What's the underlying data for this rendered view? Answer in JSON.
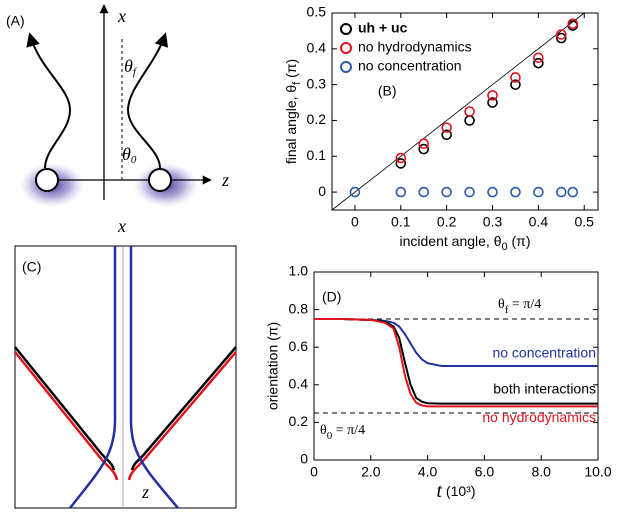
{
  "panel_a": {
    "label": "(A)",
    "x_axis": "x",
    "z_axis": "z",
    "theta_f": {
      "symbol": "θ",
      "subscript": "f"
    },
    "theta_0": {
      "symbol": "θ",
      "subscript": "0"
    }
  },
  "panel_c": {
    "label": "(C)",
    "x_axis": "x",
    "z_axis": "z"
  },
  "chart_data": [
    {
      "type": "scatter",
      "annotation": "(B)",
      "xlabel": {
        "text": "incident angle, θ",
        "subscript": "0",
        "suffix": " (π)"
      },
      "ylabel": {
        "text": "final angle, θ",
        "subscript": "f",
        "suffix": " (π)"
      },
      "xlim": [
        -0.05,
        0.53
      ],
      "ylim": [
        -0.05,
        0.5
      ],
      "xticks": [
        0,
        0.1,
        0.2,
        0.3,
        0.4,
        0.5
      ],
      "yticks": [
        0,
        0.1,
        0.2,
        0.3,
        0.4,
        0.5
      ],
      "legend": "upper left",
      "reference_line": {
        "x": [
          -0.05,
          0.5
        ],
        "y": [
          -0.05,
          0.5
        ]
      },
      "series": [
        {
          "name": "uh + uc",
          "color": "#000000",
          "x": [
            0.1,
            0.15,
            0.2,
            0.25,
            0.3,
            0.35,
            0.4,
            0.45,
            0.475
          ],
          "values": [
            0.08,
            0.12,
            0.16,
            0.2,
            0.25,
            0.3,
            0.36,
            0.43,
            0.465
          ]
        },
        {
          "name": "no hydrodynamics",
          "color": "#e0141e",
          "x": [
            0.1,
            0.15,
            0.2,
            0.25,
            0.3,
            0.35,
            0.4,
            0.45,
            0.475
          ],
          "values": [
            0.095,
            0.135,
            0.18,
            0.225,
            0.27,
            0.32,
            0.375,
            0.44,
            0.47
          ]
        },
        {
          "name": "no concentration",
          "color": "#2a5caa",
          "x": [
            0,
            0.1,
            0.15,
            0.2,
            0.25,
            0.3,
            0.35,
            0.4,
            0.45,
            0.475
          ],
          "values": [
            0,
            0,
            0,
            0,
            0,
            0,
            0,
            0,
            0,
            0
          ]
        }
      ]
    },
    {
      "type": "line",
      "annotation": "(D)",
      "xlabel": {
        "text": "t",
        "suffix": " (10³)"
      },
      "ylabel": "orientation (π)",
      "xlim": [
        0,
        10
      ],
      "ylim": [
        0,
        1
      ],
      "xticks": [
        0,
        {
          "value": 2,
          "label": "2.0"
        },
        {
          "value": 4,
          "label": "4.0"
        },
        {
          "value": 6,
          "label": "6.0"
        },
        {
          "value": 8,
          "label": "8.0"
        },
        {
          "value": 10,
          "label": "10.0"
        }
      ],
      "yticks": [
        0,
        0.2,
        0.4,
        0.6,
        0.8,
        {
          "value": 1,
          "label": "1.0"
        }
      ],
      "hlines": [
        {
          "y": 0.75,
          "symbol": "θ",
          "subscript": "f",
          "text": " = π/4"
        },
        {
          "y": 0.25,
          "symbol": "θ",
          "subscript": "0",
          "text": " = π/4"
        }
      ],
      "x": [
        0,
        1,
        2,
        2.5,
        2.8,
        3.0,
        3.2,
        3.4,
        3.6,
        3.8,
        4.0,
        4.5,
        5,
        6,
        7,
        8,
        9,
        10
      ],
      "series": [
        {
          "name": "no concentration",
          "color": "#2030a0",
          "values": [
            0.75,
            0.75,
            0.745,
            0.74,
            0.73,
            0.71,
            0.67,
            0.62,
            0.57,
            0.535,
            0.515,
            0.5,
            0.5,
            0.5,
            0.5,
            0.5,
            0.5,
            0.5
          ]
        },
        {
          "name": "both interactions",
          "color": "#000000",
          "values": [
            0.75,
            0.75,
            0.745,
            0.735,
            0.71,
            0.65,
            0.52,
            0.4,
            0.33,
            0.31,
            0.302,
            0.3,
            0.3,
            0.3,
            0.3,
            0.3,
            0.3,
            0.3
          ]
        },
        {
          "name": "no hydrodynamics",
          "color": "#e0141e",
          "values": [
            0.75,
            0.75,
            0.745,
            0.73,
            0.7,
            0.6,
            0.45,
            0.35,
            0.305,
            0.29,
            0.285,
            0.285,
            0.285,
            0.285,
            0.285,
            0.285,
            0.285,
            0.285
          ]
        }
      ]
    }
  ]
}
